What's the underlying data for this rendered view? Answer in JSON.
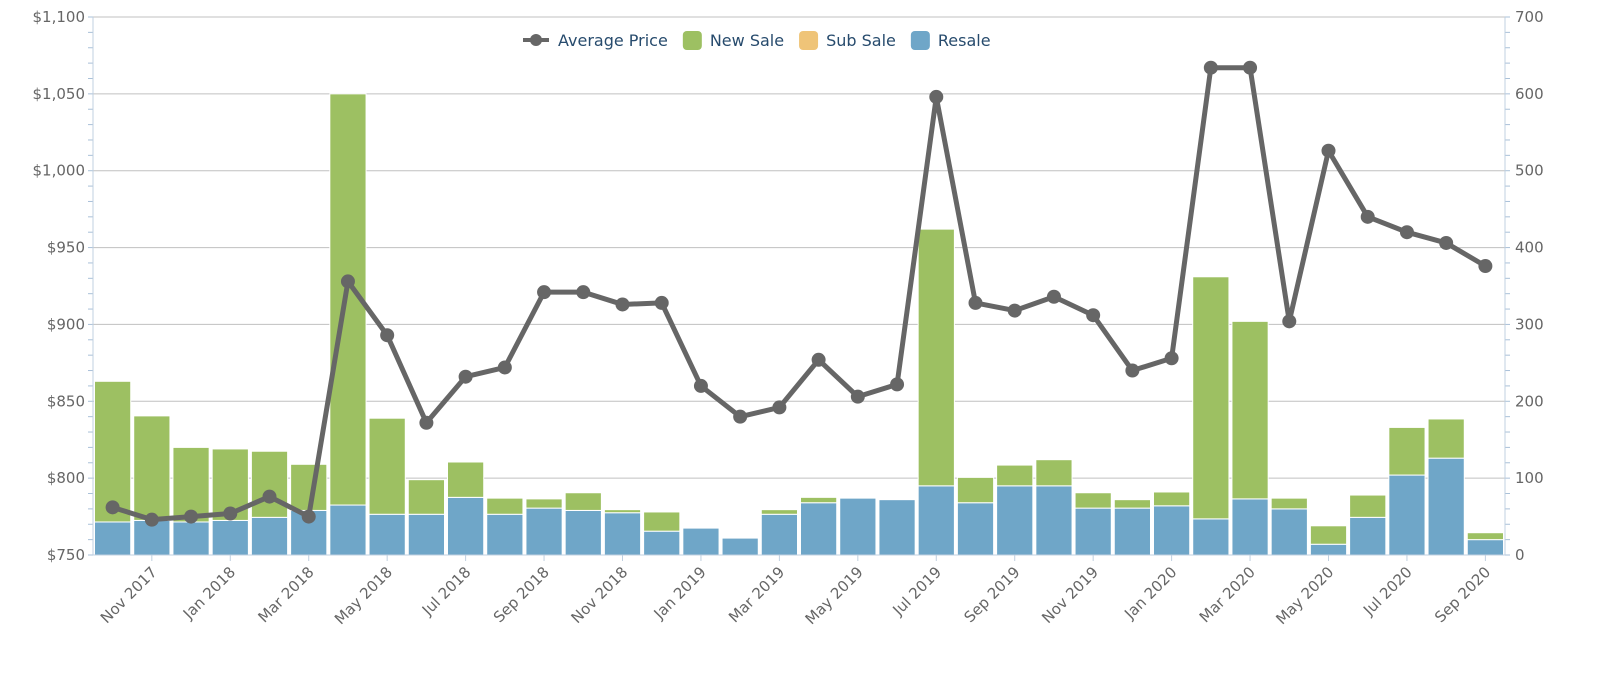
{
  "chart_data": {
    "type": "bar",
    "title": "",
    "categories": [
      "Oct 2017",
      "Nov 2017",
      "Dec 2017",
      "Jan 2018",
      "Feb 2018",
      "Mar 2018",
      "Apr 2018",
      "May 2018",
      "Jun 2018",
      "Jul 2018",
      "Aug 2018",
      "Sep 2018",
      "Oct 2018",
      "Nov 2018",
      "Dec 2018",
      "Jan 2019",
      "Feb 2019",
      "Mar 2019",
      "Apr 2019",
      "May 2019",
      "Jun 2019",
      "Jul 2019",
      "Aug 2019",
      "Sep 2019",
      "Oct 2019",
      "Nov 2019",
      "Dec 2019",
      "Jan 2020",
      "Feb 2020",
      "Mar 2020",
      "Apr 2020",
      "May 2020",
      "Jun 2020",
      "Jul 2020",
      "Aug 2020",
      "Sep 2020"
    ],
    "x_tick_labels": [
      "Nov 2017",
      "Jan 2018",
      "Mar 2018",
      "May 2018",
      "Jul 2018",
      "Sep 2018",
      "Nov 2018",
      "Jan 2019",
      "Mar 2019",
      "May 2019",
      "Jul 2019",
      "Sep 2019",
      "Nov 2019",
      "Jan 2020",
      "Mar 2020",
      "May 2020",
      "Jul 2020",
      "Sep 2020"
    ],
    "left_axis": {
      "ylim": [
        750,
        1100
      ],
      "ticks": [
        "$750",
        "$800",
        "$850",
        "$900",
        "$950",
        "$1,000",
        "$1,050",
        "$1,100"
      ]
    },
    "right_axis": {
      "ylim": [
        0,
        700
      ],
      "ticks": [
        "0",
        "100",
        "200",
        "300",
        "400",
        "500",
        "600",
        "700"
      ]
    },
    "grid": true,
    "legend_position": "top-center",
    "series": [
      {
        "name": "Average Price",
        "type": "line",
        "axis": "left",
        "color": "#666666",
        "values": [
          781,
          773,
          775,
          777,
          788,
          775,
          928,
          893,
          836,
          866,
          872,
          921,
          921,
          913,
          914,
          860,
          840,
          846,
          877,
          853,
          861,
          1048,
          914,
          909,
          918,
          906,
          870,
          878,
          1067,
          1067,
          902,
          1013,
          970,
          960,
          953,
          938
        ]
      },
      {
        "name": "New Sale",
        "type": "bar",
        "axis": "right",
        "color": "#9dc062",
        "values": [
          183,
          136,
          97,
          93,
          86,
          60,
          535,
          125,
          45,
          46,
          21,
          12,
          23,
          4,
          25,
          0,
          0,
          6,
          7,
          0,
          0,
          334,
          33,
          27,
          34,
          20,
          11,
          18,
          315,
          231,
          14,
          24,
          29,
          62,
          51,
          9
        ]
      },
      {
        "name": "Sub Sale",
        "type": "bar",
        "axis": "right",
        "color": "#efc478",
        "values": [
          0,
          0,
          0,
          0,
          0,
          0,
          0,
          0,
          0,
          0,
          0,
          0,
          0,
          0,
          0,
          0,
          0,
          0,
          0,
          0,
          0,
          0,
          0,
          0,
          0,
          0,
          0,
          0,
          0,
          0,
          0,
          0,
          0,
          0,
          0,
          0
        ]
      },
      {
        "name": "Resale",
        "type": "bar",
        "axis": "right",
        "color": "#6fa6c8",
        "values": [
          43,
          45,
          43,
          45,
          49,
          58,
          65,
          53,
          53,
          75,
          53,
          61,
          58,
          55,
          31,
          35,
          22,
          53,
          68,
          74,
          72,
          90,
          68,
          90,
          90,
          61,
          61,
          64,
          47,
          73,
          60,
          14,
          49,
          104,
          126,
          20
        ]
      }
    ]
  }
}
